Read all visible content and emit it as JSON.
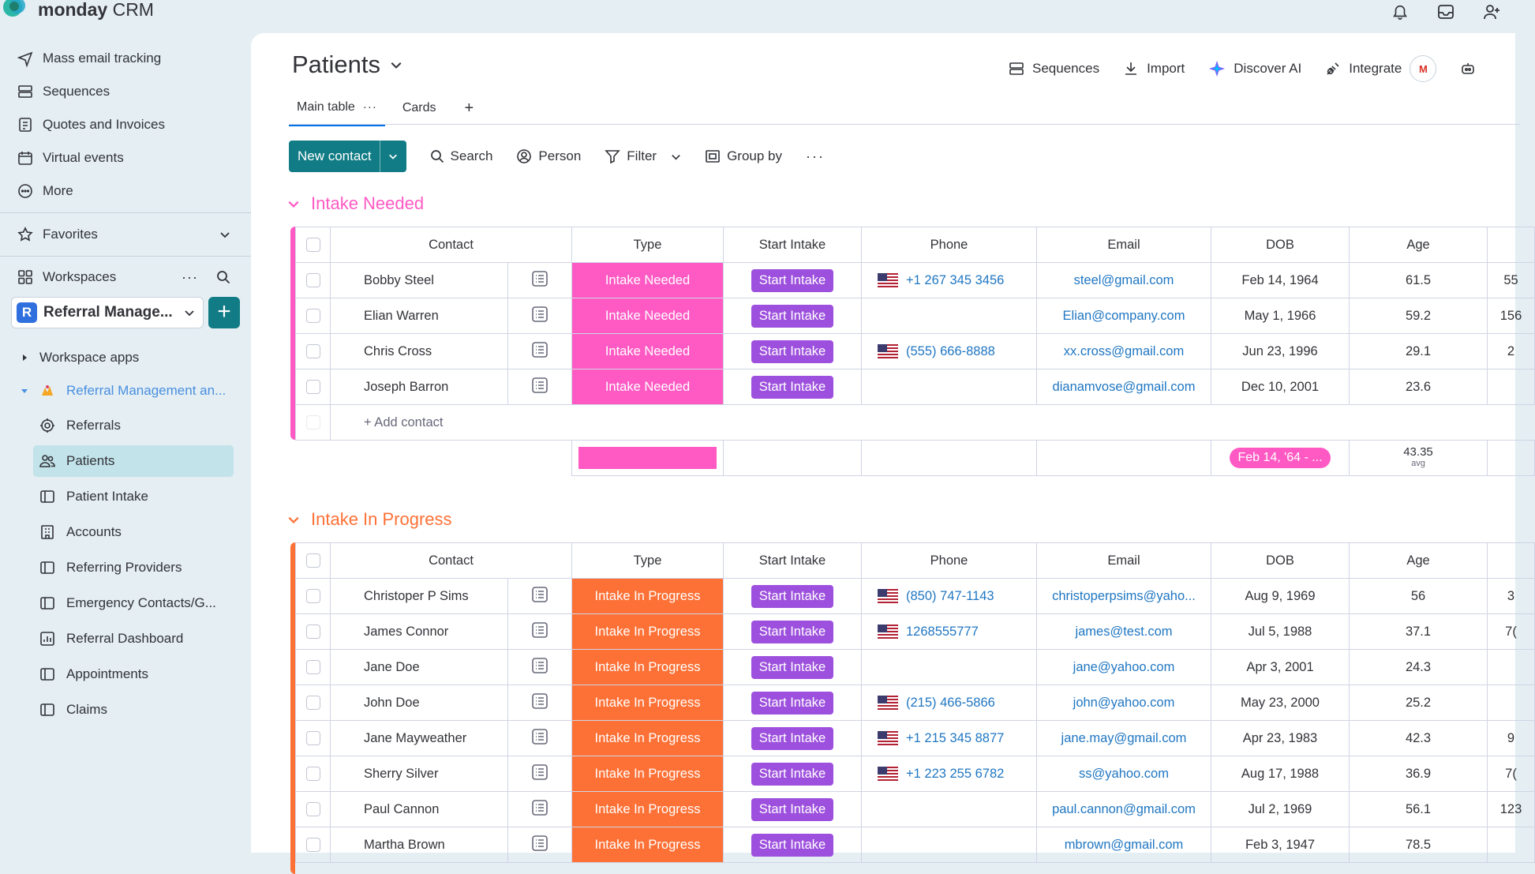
{
  "app": {
    "brand": "monday",
    "product": "CRM"
  },
  "sidebar": {
    "top_items": [
      {
        "label": "Mass email tracking",
        "icon": "send-icon"
      },
      {
        "label": "Sequences",
        "icon": "sequences-icon"
      },
      {
        "label": "Quotes and Invoices",
        "icon": "invoice-icon"
      },
      {
        "label": "Virtual events",
        "icon": "calendar-icon"
      },
      {
        "label": "More",
        "icon": "more-circle-icon"
      }
    ],
    "favorites": "Favorites",
    "workspaces": "Workspaces",
    "workspace_badge": "R",
    "workspace_name": "Referral Manage...",
    "workspace_apps": "Workspace apps",
    "folder": "Referral Management an...",
    "boards": [
      {
        "label": "Referrals"
      },
      {
        "label": "Patients"
      },
      {
        "label": "Patient Intake"
      },
      {
        "label": "Accounts"
      },
      {
        "label": "Referring Providers"
      },
      {
        "label": "Emergency Contacts/G..."
      },
      {
        "label": "Referral Dashboard"
      },
      {
        "label": "Appointments"
      },
      {
        "label": "Claims"
      }
    ]
  },
  "header": {
    "title": "Patients",
    "actions": {
      "sequences": "Sequences",
      "import": "Import",
      "discover_ai": "Discover AI",
      "integrate": "Integrate",
      "gmail_badge": "M"
    },
    "tabs": {
      "main": "Main table",
      "cards": "Cards"
    }
  },
  "toolbar": {
    "new_contact": "New contact",
    "search": "Search",
    "person": "Person",
    "filter": "Filter",
    "group_by": "Group by"
  },
  "columns": {
    "contact": "Contact",
    "type": "Type",
    "start_intake": "Start Intake",
    "phone": "Phone",
    "email": "Email",
    "dob": "DOB",
    "age": "Age"
  },
  "colors": {
    "intake_needed": "#ff5ac4",
    "intake_in_progress": "#fd7136",
    "start_button": "#9d50dd",
    "primary": "#117c85"
  },
  "groups": [
    {
      "title": "Intake Needed",
      "add_label": "+ Add contact",
      "summary": {
        "dob": "Feb 14, '64 - ...",
        "age": "43.35",
        "age_label": "avg"
      },
      "rows": [
        {
          "contact": "Bobby Steel",
          "type": "Intake Needed",
          "button": "Start Intake",
          "phone": "+1 267 345 3456",
          "email": "steel@gmail.com",
          "dob": "Feb 14, 1964",
          "age": "61.5",
          "extra": "55"
        },
        {
          "contact": "Elian Warren",
          "type": "Intake Needed",
          "button": "Start Intake",
          "phone": "",
          "email": "Elian@company.com",
          "dob": "May 1, 1966",
          "age": "59.2",
          "extra": "156"
        },
        {
          "contact": "Chris Cross",
          "type": "Intake Needed",
          "button": "Start Intake",
          "phone": "(555) 666-8888",
          "email": "xx.cross@gmail.com",
          "dob": "Jun 23, 1996",
          "age": "29.1",
          "extra": "2"
        },
        {
          "contact": "Joseph Barron",
          "type": "Intake Needed",
          "button": "Start Intake",
          "phone": "",
          "email": "dianamvose@gmail.com",
          "dob": "Dec 10, 2001",
          "age": "23.6",
          "extra": ""
        }
      ]
    },
    {
      "title": "Intake In Progress",
      "rows": [
        {
          "contact": "Christoper P Sims",
          "type": "Intake In Progress",
          "button": "Start Intake",
          "phone": "(850) 747-1143",
          "email": "christoperpsims@yaho...",
          "dob": "Aug 9, 1969",
          "age": "56",
          "extra": "3"
        },
        {
          "contact": "James Connor",
          "type": "Intake In Progress",
          "button": "Start Intake",
          "phone": "1268555777",
          "email": "james@test.com",
          "dob": "Jul 5, 1988",
          "age": "37.1",
          "extra": "7("
        },
        {
          "contact": "Jane Doe",
          "type": "Intake In Progress",
          "button": "Start Intake",
          "phone": "",
          "email": "jane@yahoo.com",
          "dob": "Apr 3, 2001",
          "age": "24.3",
          "extra": ""
        },
        {
          "contact": "John Doe",
          "type": "Intake In Progress",
          "button": "Start Intake",
          "phone": "(215) 466-5866",
          "email": "john@yahoo.com",
          "dob": "May 23, 2000",
          "age": "25.2",
          "extra": ""
        },
        {
          "contact": "Jane Mayweather",
          "type": "Intake In Progress",
          "button": "Start Intake",
          "phone": "+1 215 345 8877",
          "email": "jane.may@gmail.com",
          "dob": "Apr 23, 1983",
          "age": "42.3",
          "extra": "9"
        },
        {
          "contact": "Sherry Silver",
          "type": "Intake In Progress",
          "button": "Start Intake",
          "phone": "+1 223 255 6782",
          "email": "ss@yahoo.com",
          "dob": "Aug 17, 1988",
          "age": "36.9",
          "extra": "7("
        },
        {
          "contact": "Paul Cannon",
          "type": "Intake In Progress",
          "button": "Start Intake",
          "phone": "",
          "email": "paul.cannon@gmail.com",
          "dob": "Jul 2, 1969",
          "age": "56.1",
          "extra": "123"
        },
        {
          "contact": "Martha Brown",
          "type": "Intake In Progress",
          "button": "Start Intake",
          "phone": "",
          "email": "mbrown@gmail.com",
          "dob": "Feb 3, 1947",
          "age": "78.5",
          "extra": ""
        }
      ]
    }
  ]
}
